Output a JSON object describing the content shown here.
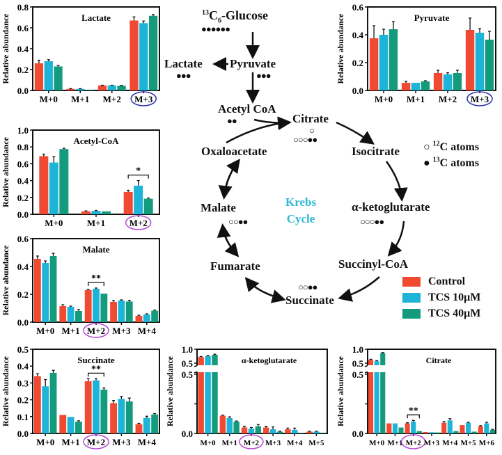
{
  "colors": {
    "control": "#f04a33",
    "tcs10": "#1db4d8",
    "tcs40": "#149a7c",
    "circle_blue": "#2a2ab8",
    "circle_purple": "#b545d6",
    "krebs": "#2fb9d6"
  },
  "diagram": {
    "glucose_mass": "13",
    "glucose_name": "C",
    "glucose_sub": "6",
    "glucose_suffix": "-Glucose",
    "glucose_dots": "●●●●●●",
    "lactate": "Lactate",
    "lactate_dots": "●●●",
    "pyruvate": "Pyruvate",
    "pyruvate_dots": "●●●",
    "acetyl_coa": "Acetyl CoA",
    "acetyl_dots": "●●",
    "citrate": "Citrate",
    "citrate_dots": "○○○●●",
    "citrate_dot_top": "○",
    "isocitrate": "Isocitrate",
    "oxaloacetate": "Oxaloacetate",
    "akg": "α-ketoglutarate",
    "akg_dots": "○○○●●",
    "malate": "Malate",
    "malate_dots": "○○●●",
    "fumarate": "Fumarate",
    "succinyl_coa": "Succinyl-CoA",
    "succinate": "Succinate",
    "succinate_dots": "○○●●",
    "krebs_line1": "Krebs",
    "krebs_line2": "Cycle",
    "atom_legend": [
      {
        "symbol": "○",
        "mass": "12",
        "text": "C atoms"
      },
      {
        "symbol": "●",
        "mass": "13",
        "text": "C atoms"
      }
    ]
  },
  "legend": [
    {
      "label": "Control",
      "color": "#f04a33"
    },
    {
      "label": "TCS 10μM",
      "color": "#1db4d8"
    },
    {
      "label": "TCS 40μM",
      "color": "#149a7c"
    }
  ],
  "chart_data": [
    {
      "id": "lactate",
      "type": "bar",
      "title": "Lactate",
      "ylabel": "Relative abundance",
      "ylim": [
        0,
        0.8
      ],
      "yticks": [
        "0.0",
        "0.2",
        "0.4",
        "0.6",
        "0.8"
      ],
      "categories": [
        "M+0",
        "M+1",
        "M+2",
        "M+3"
      ],
      "highlight": {
        "category": "M+3",
        "color": "blue"
      },
      "series": [
        {
          "name": "Control",
          "values": [
            0.26,
            0.015,
            0.048,
            0.67
          ],
          "errors": [
            0.03,
            0.002,
            0.002,
            0.035
          ]
        },
        {
          "name": "TCS 10μM",
          "values": [
            0.28,
            0.015,
            0.048,
            0.645
          ],
          "errors": [
            0.015,
            0.002,
            0.002,
            0.02
          ]
        },
        {
          "name": "TCS 40μM",
          "values": [
            0.23,
            0.004,
            0.045,
            0.715
          ],
          "errors": [
            0.01,
            0,
            0.003,
            0.012
          ]
        }
      ]
    },
    {
      "id": "pyruvate",
      "type": "bar",
      "title": "Pyruvate",
      "ylabel": "Relative abundance",
      "ylim": [
        0,
        0.6
      ],
      "yticks": [
        "0.0",
        "0.2",
        "0.4",
        "0.6"
      ],
      "categories": [
        "M+0",
        "M+1",
        "M+2",
        "M+3"
      ],
      "highlight": {
        "category": "M+3",
        "color": "blue"
      },
      "series": [
        {
          "name": "Control",
          "values": [
            0.375,
            0.055,
            0.125,
            0.435
          ],
          "errors": [
            0.09,
            0.012,
            0.02,
            0.085
          ]
        },
        {
          "name": "TCS 10μM",
          "values": [
            0.4,
            0.055,
            0.115,
            0.415
          ],
          "errors": [
            0.04,
            0,
            0.012,
            0.03
          ]
        },
        {
          "name": "TCS 40μM",
          "values": [
            0.44,
            0.065,
            0.125,
            0.365
          ],
          "errors": [
            0.055,
            0.005,
            0.02,
            0.06
          ]
        }
      ]
    },
    {
      "id": "acetylcoa",
      "type": "bar",
      "title": "Acetyl-CoA",
      "ylabel": "Relative abundance",
      "ylim": [
        0,
        1.0
      ],
      "yticks": [
        "0.0",
        "0.2",
        "0.4",
        "0.6",
        "0.8",
        "1.0"
      ],
      "categories": [
        "M+0",
        "M+1",
        "M+2"
      ],
      "highlight": {
        "category": "M+2",
        "color": "purple"
      },
      "significance": [
        {
          "category": "M+2",
          "label": "*"
        }
      ],
      "series": [
        {
          "name": "Control",
          "values": [
            0.69,
            0.035,
            0.265
          ],
          "errors": [
            0.025,
            0.005,
            0.02
          ]
        },
        {
          "name": "TCS 10μM",
          "values": [
            0.615,
            0.04,
            0.34
          ],
          "errors": [
            0.07,
            0.005,
            0.06
          ]
        },
        {
          "name": "TCS 40μM",
          "values": [
            0.775,
            0.035,
            0.185
          ],
          "errors": [
            0.01,
            0,
            0.008
          ]
        }
      ]
    },
    {
      "id": "malate",
      "type": "bar",
      "title": "Malate",
      "ylabel": "Relative abundance",
      "ylim": [
        0,
        0.6
      ],
      "yticks": [
        "0.0",
        "0.2",
        "0.4",
        "0.6"
      ],
      "categories": [
        "M+0",
        "M+1",
        "M+2",
        "M+3",
        "M+4"
      ],
      "highlight": {
        "category": "M+2",
        "color": "purple"
      },
      "significance": [
        {
          "category": "M+2",
          "label": "**"
        }
      ],
      "series": [
        {
          "name": "Control",
          "values": [
            0.455,
            0.115,
            0.23,
            0.145,
            0.045
          ],
          "errors": [
            0.02,
            0.01,
            0.005,
            0.01,
            0.005
          ]
        },
        {
          "name": "TCS 10μM",
          "values": [
            0.425,
            0.11,
            0.24,
            0.155,
            0.055
          ],
          "errors": [
            0.015,
            0.005,
            0.005,
            0.005,
            0.005
          ]
        },
        {
          "name": "TCS 40μM",
          "values": [
            0.475,
            0.08,
            0.205,
            0.148,
            0.082
          ],
          "errors": [
            0.02,
            0.01,
            0,
            0.008,
            0.005
          ]
        }
      ]
    },
    {
      "id": "succinate",
      "type": "bar",
      "title": "Succinate",
      "ylabel": "Relative abundance",
      "ylim": [
        0,
        0.5
      ],
      "yticks": [
        "0.0",
        "0.1",
        "0.2",
        "0.3",
        "0.4",
        "0.5"
      ],
      "categories": [
        "M+0",
        "M+1",
        "M+2",
        "M+3",
        "M+4"
      ],
      "highlight": {
        "category": "M+2",
        "color": "purple"
      },
      "significance": [
        {
          "category": "M+2",
          "label": "**"
        }
      ],
      "series": [
        {
          "name": "Control",
          "values": [
            0.34,
            0.11,
            0.31,
            0.18,
            0.055
          ],
          "errors": [
            0.015,
            0,
            0.015,
            0.015,
            0.005
          ]
        },
        {
          "name": "TCS 10μM",
          "values": [
            0.28,
            0.098,
            0.315,
            0.205,
            0.092
          ],
          "errors": [
            0.04,
            0,
            0.01,
            0.015,
            0.01
          ]
        },
        {
          "name": "TCS 40μM",
          "values": [
            0.36,
            0.07,
            0.26,
            0.19,
            0.113
          ],
          "errors": [
            0.015,
            0.005,
            0.01,
            0.02,
            0.005
          ]
        }
      ]
    },
    {
      "id": "akg",
      "type": "bar",
      "title": "α-ketoglutarate",
      "ylabel": "Relative abundance",
      "ylim": [
        0,
        1.0
      ],
      "axis_break": 0.5,
      "yticks": [
        "0.0",
        "0.5",
        "0.5",
        "1.0"
      ],
      "categories": [
        "M+0",
        "M+1",
        "M+2",
        "M+3",
        "M+4",
        "M+5"
      ],
      "highlight": {
        "category": "M+2",
        "color": "purple"
      },
      "series": [
        {
          "name": "Control",
          "values": [
            0.72,
            0.15,
            0.05,
            0.05,
            0.035,
            0.015
          ],
          "errors": [
            0.02,
            0.005,
            0.01,
            0.01,
            0.01,
            0.005
          ]
        },
        {
          "name": "TCS 10μM",
          "values": [
            0.75,
            0.13,
            0.04,
            0.035,
            0.03,
            0.015
          ],
          "errors": [
            0.02,
            0.01,
            0.01,
            0.02,
            0.015,
            0.005
          ]
        },
        {
          "name": "TCS 40μM",
          "values": [
            0.8,
            0.1,
            0.06,
            0.015,
            0.005,
            0.003
          ],
          "errors": [
            0.02,
            0.005,
            0.015,
            0.005,
            0,
            0
          ]
        }
      ]
    },
    {
      "id": "citrate",
      "type": "bar",
      "title": "Citrate",
      "ylabel": "Relative abundance",
      "ylim": [
        0,
        1.0
      ],
      "axis_break": 0.5,
      "yticks": [
        "0.0",
        "0.5",
        "0.5",
        "1.0"
      ],
      "categories": [
        "M+0",
        "M+1",
        "M+2",
        "M+3",
        "M+4",
        "M+5",
        "M+6"
      ],
      "highlight": {
        "category": "M+2",
        "color": "purple"
      },
      "significance": [
        {
          "category": "M+2",
          "label": "**"
        }
      ],
      "series": [
        {
          "name": "Control",
          "values": [
            0.62,
            0.085,
            0.085,
            0.012,
            0.09,
            0.07,
            0.06
          ],
          "errors": [
            0.02,
            0,
            0.005,
            0,
            0.01,
            0,
            0.005
          ]
        },
        {
          "name": "TCS 10μM",
          "values": [
            0.57,
            0.085,
            0.1,
            0.01,
            0.11,
            0.09,
            0.085
          ],
          "errors": [
            0.02,
            0,
            0.01,
            0,
            0.015,
            0.005,
            0.01
          ]
        },
        {
          "name": "TCS 40μM",
          "values": [
            0.86,
            0.05,
            0.02,
            0.008,
            0.02,
            0.015,
            0.03
          ],
          "errors": [
            0.02,
            0,
            0,
            0,
            0,
            0,
            0.005
          ]
        }
      ]
    }
  ]
}
